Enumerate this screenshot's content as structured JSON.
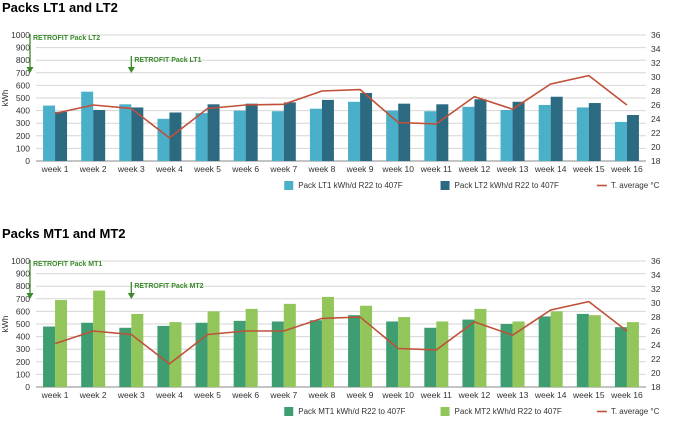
{
  "chart_data": [
    {
      "type": "bar",
      "title": "Packs LT1 and LT2",
      "ylabel": "kWh",
      "ylim": [
        0,
        1000
      ],
      "yticks": [
        0,
        100,
        200,
        300,
        400,
        500,
        600,
        700,
        800,
        900,
        1000
      ],
      "y2lim": [
        18,
        36
      ],
      "y2ticks": [
        18,
        20,
        22,
        24,
        26,
        28,
        30,
        32,
        34,
        36
      ],
      "categories": [
        "week 1",
        "week 2",
        "week 3",
        "week 4",
        "week 5",
        "week 6",
        "week 7",
        "week 8",
        "week 9",
        "week 10",
        "week 11",
        "week 12",
        "week 13",
        "week 14",
        "week 15",
        "week 16"
      ],
      "series": [
        {
          "name": "Pack LT1 kWh/d R22 to 407F",
          "type": "bar",
          "color": "#4aafc9",
          "values": [
            440,
            550,
            450,
            335,
            380,
            400,
            395,
            415,
            470,
            400,
            395,
            430,
            405,
            445,
            425,
            310
          ]
        },
        {
          "name": "Pack LT2 kWh/d R22 to 407F",
          "type": "bar",
          "color": "#2b6a80",
          "values": [
            390,
            405,
            425,
            385,
            450,
            455,
            465,
            485,
            540,
            455,
            450,
            490,
            470,
            510,
            460,
            365
          ]
        },
        {
          "name": "T. average °C",
          "type": "line",
          "axis": "right",
          "color": "#c0503a",
          "values": [
            24.8,
            26.0,
            25.5,
            21.3,
            25.5,
            26.0,
            26.1,
            28.0,
            28.2,
            23.5,
            23.3,
            27.2,
            25.4,
            29.0,
            30.2,
            26.0
          ]
        }
      ],
      "annotations": [
        {
          "text": "RETROFIT Pack LT2",
          "category": "week 1"
        },
        {
          "text": "RETROFIT Pack LT1",
          "category": "week 3"
        }
      ]
    },
    {
      "type": "bar",
      "title": "Packs MT1 and MT2",
      "ylabel": "kWh",
      "ylim": [
        0,
        1000
      ],
      "yticks": [
        0,
        100,
        200,
        300,
        400,
        500,
        600,
        700,
        800,
        900,
        1000
      ],
      "y2lim": [
        18,
        36
      ],
      "y2ticks": [
        18,
        20,
        22,
        24,
        26,
        28,
        30,
        32,
        34,
        36
      ],
      "categories": [
        "week 1",
        "week 2",
        "week 3",
        "week 4",
        "week 5",
        "week 6",
        "week 7",
        "week 8",
        "week 9",
        "week 10",
        "week 11",
        "week 12",
        "week 13",
        "week 14",
        "week 15",
        "week 16"
      ],
      "series": [
        {
          "name": "Pack MT1 kWh/d R22 to 407F",
          "type": "bar",
          "color": "#3e9e72",
          "values": [
            480,
            510,
            470,
            485,
            510,
            525,
            520,
            530,
            570,
            520,
            470,
            535,
            500,
            560,
            580,
            475
          ]
        },
        {
          "name": "Pack MT2 kWh/d R22 to 407F",
          "type": "bar",
          "color": "#92c65a",
          "values": [
            690,
            765,
            580,
            515,
            600,
            620,
            660,
            715,
            645,
            555,
            520,
            620,
            520,
            600,
            570,
            515
          ]
        },
        {
          "name": "T. average °C",
          "type": "line",
          "axis": "right",
          "color": "#c0503a",
          "values": [
            24.2,
            26.0,
            25.5,
            21.3,
            25.5,
            26.0,
            26.0,
            27.8,
            28.0,
            23.5,
            23.3,
            27.3,
            25.4,
            29.0,
            30.2,
            26.0
          ]
        }
      ],
      "annotations": [
        {
          "text": "RETROFIT Pack MT1",
          "category": "week 1"
        },
        {
          "text": "RETROFIT Pack MT2",
          "category": "week 3"
        }
      ]
    }
  ]
}
